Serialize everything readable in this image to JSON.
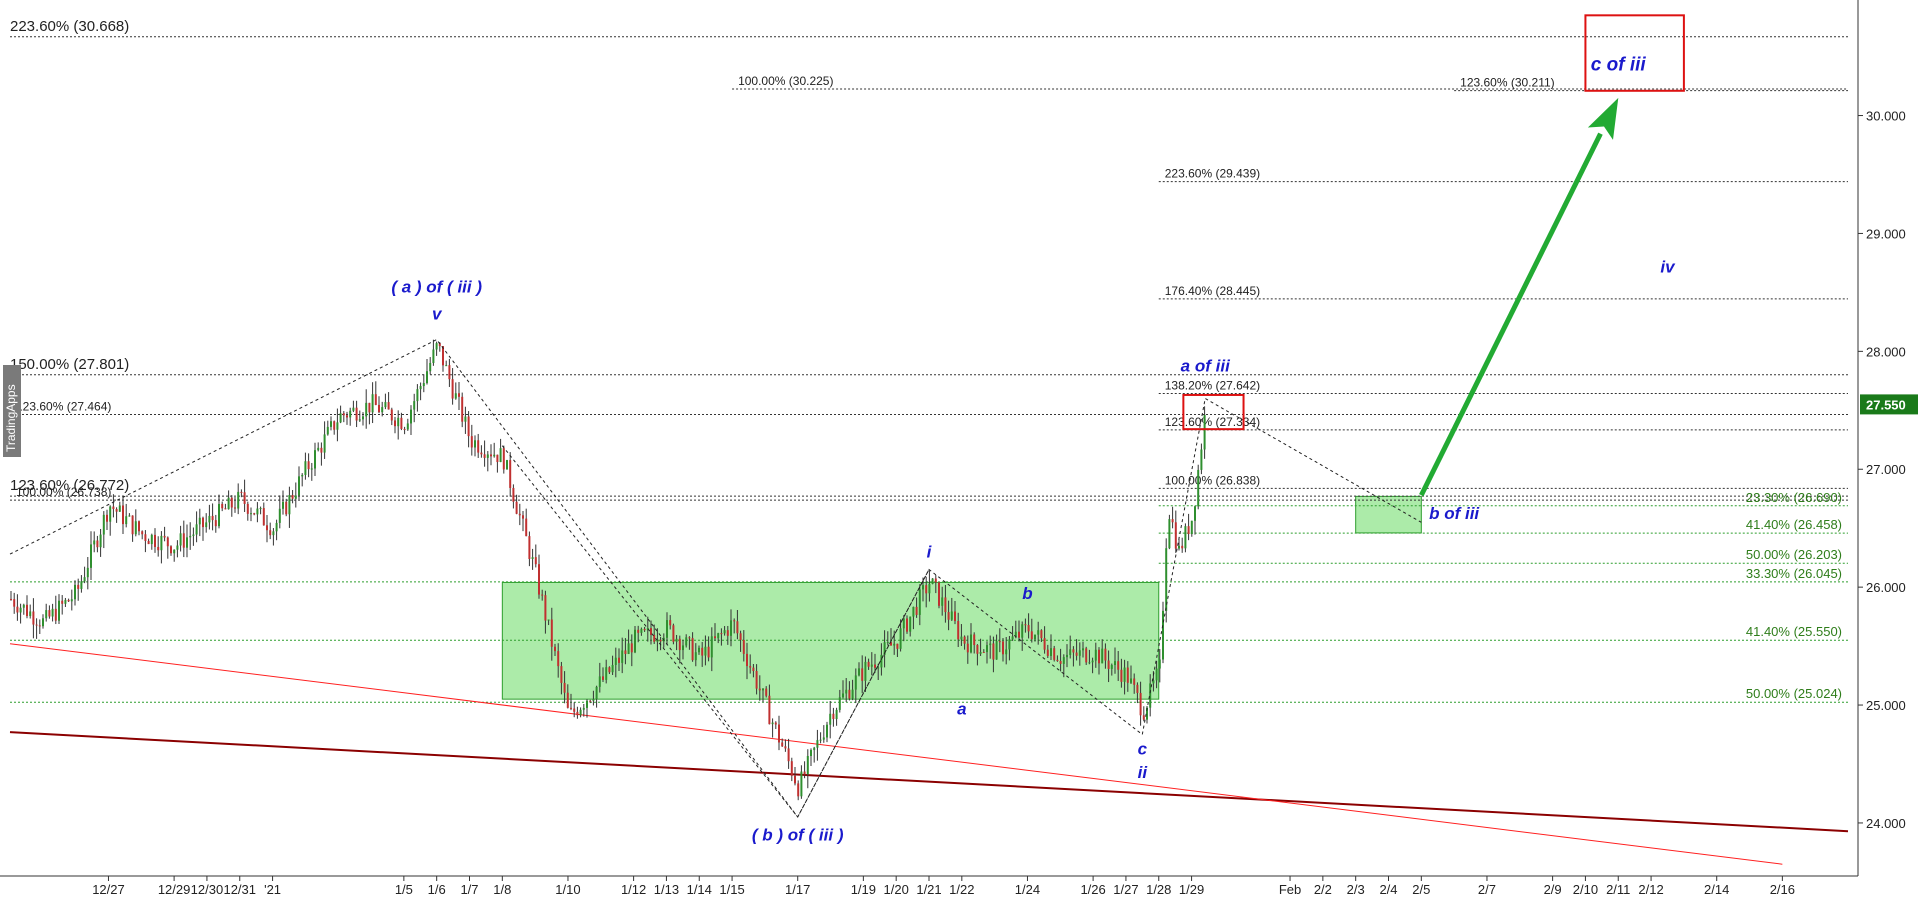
{
  "chart_data": {
    "type": "candlestick",
    "watermark": "TradingApps",
    "y_axis": {
      "range": [
        23.55,
        30.98
      ],
      "ticks": [
        24.0,
        25.0,
        26.0,
        27.0,
        28.0,
        29.0,
        30.0
      ],
      "tick_labels": [
        "24.000",
        "25.000",
        "26.000",
        "27.000",
        "28.000",
        "29.000",
        "30.000"
      ]
    },
    "x_axis": {
      "start": "2020-12-24",
      "end": "2021-02-18",
      "ticks": [
        {
          "date": "2020-12-27",
          "label": "12/27"
        },
        {
          "date": "2020-12-29",
          "label": "12/29"
        },
        {
          "date": "2020-12-30",
          "label": "12/30"
        },
        {
          "date": "2020-12-31",
          "label": "12/31"
        },
        {
          "date": "2021-01-01",
          "label": "'21"
        },
        {
          "date": "2021-01-05",
          "label": "1/5"
        },
        {
          "date": "2021-01-06",
          "label": "1/6"
        },
        {
          "date": "2021-01-07",
          "label": "1/7"
        },
        {
          "date": "2021-01-08",
          "label": "1/8"
        },
        {
          "date": "2021-01-10",
          "label": "1/10"
        },
        {
          "date": "2021-01-12",
          "label": "1/12"
        },
        {
          "date": "2021-01-13",
          "label": "1/13"
        },
        {
          "date": "2021-01-14",
          "label": "1/14"
        },
        {
          "date": "2021-01-15",
          "label": "1/15"
        },
        {
          "date": "2021-01-17",
          "label": "1/17"
        },
        {
          "date": "2021-01-19",
          "label": "1/19"
        },
        {
          "date": "2021-01-20",
          "label": "1/20"
        },
        {
          "date": "2021-01-21",
          "label": "1/21"
        },
        {
          "date": "2021-01-22",
          "label": "1/22"
        },
        {
          "date": "2021-01-24",
          "label": "1/24"
        },
        {
          "date": "2021-01-26",
          "label": "1/26"
        },
        {
          "date": "2021-01-27",
          "label": "1/27"
        },
        {
          "date": "2021-01-28",
          "label": "1/28"
        },
        {
          "date": "2021-01-29",
          "label": "1/29"
        },
        {
          "date": "2021-02-01",
          "label": "Feb"
        },
        {
          "date": "2021-02-02",
          "label": "2/2"
        },
        {
          "date": "2021-02-03",
          "label": "2/3"
        },
        {
          "date": "2021-02-04",
          "label": "2/4"
        },
        {
          "date": "2021-02-05",
          "label": "2/5"
        },
        {
          "date": "2021-02-07",
          "label": "2/7"
        },
        {
          "date": "2021-02-09",
          "label": "2/9"
        },
        {
          "date": "2021-02-10",
          "label": "2/10"
        },
        {
          "date": "2021-02-11",
          "label": "2/11"
        },
        {
          "date": "2021-02-12",
          "label": "2/12"
        },
        {
          "date": "2021-02-14",
          "label": "2/14"
        },
        {
          "date": "2021-02-16",
          "label": "2/16"
        }
      ]
    },
    "last_price": {
      "value": 27.55,
      "label": "27.550",
      "color": "#1a7a1a"
    },
    "price_path": [
      {
        "date": "2020-12-24",
        "price": 25.9
      },
      {
        "date": "2020-12-25",
        "price": 25.7
      },
      {
        "date": "2020-12-26",
        "price": 25.95
      },
      {
        "date": "2020-12-27",
        "price": 26.7
      },
      {
        "date": "2020-12-28",
        "price": 26.45
      },
      {
        "date": "2020-12-29",
        "price": 26.35
      },
      {
        "date": "2020-12-30",
        "price": 26.55
      },
      {
        "date": "2020-12-31",
        "price": 26.75
      },
      {
        "date": "2021-01-01",
        "price": 26.5
      },
      {
        "date": "2021-01-02",
        "price": 27.0
      },
      {
        "date": "2021-01-03",
        "price": 27.45
      },
      {
        "date": "2021-01-04",
        "price": 27.55
      },
      {
        "date": "2021-01-05",
        "price": 27.4
      },
      {
        "date": "2021-01-06",
        "price": 28.05
      },
      {
        "date": "2021-01-07",
        "price": 27.25
      },
      {
        "date": "2021-01-08",
        "price": 27.1
      },
      {
        "date": "2021-01-09",
        "price": 26.1
      },
      {
        "date": "2021-01-10",
        "price": 24.9
      },
      {
        "date": "2021-01-11",
        "price": 25.2
      },
      {
        "date": "2021-01-12",
        "price": 25.55
      },
      {
        "date": "2021-01-13",
        "price": 25.65
      },
      {
        "date": "2021-01-14",
        "price": 25.4
      },
      {
        "date": "2021-01-15",
        "price": 25.7
      },
      {
        "date": "2021-01-16",
        "price": 25.0
      },
      {
        "date": "2021-01-17",
        "price": 24.3
      },
      {
        "date": "2021-01-18",
        "price": 24.95
      },
      {
        "date": "2021-01-19",
        "price": 25.3
      },
      {
        "date": "2021-01-20",
        "price": 25.55
      },
      {
        "date": "2021-01-21",
        "price": 26.05
      },
      {
        "date": "2021-01-22",
        "price": 25.55
      },
      {
        "date": "2021-01-23",
        "price": 25.45
      },
      {
        "date": "2021-01-24",
        "price": 25.65
      },
      {
        "date": "2021-01-25",
        "price": 25.4
      },
      {
        "date": "2021-01-26",
        "price": 25.45
      },
      {
        "date": "2021-01-27",
        "price": 25.25
      },
      {
        "date": "2021-01-27T12:00",
        "price": 24.95
      },
      {
        "date": "2021-01-28",
        "price": 25.3
      },
      {
        "date": "2021-01-28T06:00",
        "price": 26.7
      },
      {
        "date": "2021-01-28T14:00",
        "price": 26.3
      },
      {
        "date": "2021-01-29",
        "price": 26.6
      },
      {
        "date": "2021-01-29T10:00",
        "price": 27.55
      }
    ],
    "fib_levels": [
      {
        "label": "223.60% (30.668)",
        "value": 30.668,
        "start": "2020-12-24",
        "end": "2021-02-18",
        "style": "big"
      },
      {
        "label": "100.00% (30.225)",
        "value": 30.225,
        "start": "2021-01-15",
        "end": "2021-02-18",
        "style": "small"
      },
      {
        "label": "123.60% (30.211)",
        "value": 30.211,
        "start": "2021-02-06",
        "end": "2021-02-18",
        "style": "small"
      },
      {
        "label": "223.60% (29.439)",
        "value": 29.439,
        "start": "2021-01-28",
        "end": "2021-02-18",
        "style": "small"
      },
      {
        "label": "176.40% (28.445)",
        "value": 28.445,
        "start": "2021-01-28",
        "end": "2021-02-18",
        "style": "small"
      },
      {
        "label": "150.00% (27.801)",
        "value": 27.801,
        "start": "2020-12-24",
        "end": "2021-02-18",
        "style": "big"
      },
      {
        "label": "138.20% (27.642)",
        "value": 27.642,
        "start": "2021-01-28",
        "end": "2021-02-18",
        "style": "small"
      },
      {
        "label": "123.60% (27.464)",
        "value": 27.464,
        "start": "2020-12-24",
        "end": "2021-02-18",
        "style": "small"
      },
      {
        "label": "123.60% (27.334)",
        "value": 27.334,
        "start": "2021-01-28",
        "end": "2021-02-18",
        "style": "small"
      },
      {
        "label": "100.00% (26.838)",
        "value": 26.838,
        "start": "2021-01-28",
        "end": "2021-02-18",
        "style": "small"
      },
      {
        "label": "123.60% (26.772)",
        "value": 26.772,
        "start": "2020-12-24",
        "end": "2021-02-18",
        "style": "big"
      },
      {
        "label": "100.00% (26.738)",
        "value": 26.738,
        "start": "2020-12-24",
        "end": "2021-02-18",
        "style": "small"
      },
      {
        "label": "23.30% (26.690)",
        "value": 26.69,
        "start": "2021-01-28",
        "end": "2021-02-18",
        "style": "green"
      },
      {
        "label": "41.40% (26.458)",
        "value": 26.458,
        "start": "2021-01-28",
        "end": "2021-02-18",
        "style": "green"
      },
      {
        "label": "50.00% (26.203)",
        "value": 26.203,
        "start": "2021-01-28",
        "end": "2021-02-18",
        "style": "green"
      },
      {
        "label": "33.30% (26.045)",
        "value": 26.045,
        "start": "2020-12-24",
        "end": "2021-02-18",
        "style": "green"
      },
      {
        "label": "41.40% (25.550)",
        "value": 25.55,
        "start": "2020-12-24",
        "end": "2021-02-18",
        "style": "green"
      },
      {
        "label": "50.00% (25.024)",
        "value": 25.024,
        "start": "2020-12-24",
        "end": "2021-02-18",
        "style": "green"
      }
    ],
    "zones": [
      {
        "name": "consolidation-zone",
        "start": "2021-01-08",
        "end": "2021-01-28",
        "top": 26.04,
        "bottom": 25.05,
        "color": "#9ee89a"
      },
      {
        "name": "b-of-iii-zone",
        "start": "2021-02-03",
        "end": "2021-02-05",
        "top": 26.77,
        "bottom": 26.46,
        "color": "#9ee89a"
      }
    ],
    "target_boxes": [
      {
        "name": "c-of-iii-box",
        "label": "c of iii",
        "start": "2021-02-10",
        "end": "2021-02-13",
        "top": 30.85,
        "bottom": 30.21,
        "color": "#dd1111"
      },
      {
        "name": "a-of-iii-box",
        "start": "2021-01-28T18:00",
        "end": "2021-01-30T14:00",
        "top": 27.63,
        "bottom": 27.34,
        "color": "#dd1111"
      }
    ],
    "dashed_paths": [
      [
        {
          "date": "2020-12-24",
          "price": 26.28
        },
        {
          "date": "2021-01-06",
          "price": 28.1
        },
        {
          "date": "2021-01-17",
          "price": 24.05
        },
        {
          "date": "2021-01-21",
          "price": 26.15
        },
        {
          "date": "2021-01-27T12:00",
          "price": 24.75
        },
        {
          "date": "2021-01-29T10:00",
          "price": 27.6
        },
        {
          "date": "2021-02-05",
          "price": 26.55
        }
      ],
      [
        {
          "date": "2021-01-08",
          "price": 27.2
        },
        {
          "date": "2021-01-17",
          "price": 24.05
        }
      ],
      [
        {
          "date": "2021-01-17",
          "price": 24.05
        },
        {
          "date": "2021-01-21",
          "price": 26.15
        }
      ]
    ],
    "trend_lines": [
      {
        "name": "dark-red-trendline",
        "from": {
          "date": "2020-12-24",
          "price": 24.77
        },
        "to": {
          "date": "2021-02-18",
          "price": 23.93
        },
        "color": "#8b0000",
        "width": 2
      },
      {
        "name": "red-trendline",
        "from": {
          "date": "2020-12-24",
          "price": 25.52
        },
        "to": {
          "date": "2021-02-16",
          "price": 23.65
        },
        "color": "#ff2020",
        "width": 1
      }
    ],
    "projection_arrow": {
      "from": {
        "date": "2021-02-05",
        "price": 26.78
      },
      "to": {
        "date": "2021-02-11",
        "price": 30.15
      },
      "color": "#22aa33"
    },
    "wave_labels": [
      {
        "text": "( a ) of ( iii )",
        "date": "2021-01-06",
        "price": 28.5,
        "size": 17
      },
      {
        "text": "v",
        "date": "2021-01-06",
        "price": 28.27,
        "size": 17
      },
      {
        "text": "( b ) of ( iii )",
        "date": "2021-01-17",
        "price": 23.85,
        "size": 17
      },
      {
        "text": "i",
        "date": "2021-01-21",
        "price": 26.25,
        "size": 17
      },
      {
        "text": "a",
        "date": "2021-01-22",
        "price": 24.92,
        "size": 17
      },
      {
        "text": "b",
        "date": "2021-01-24",
        "price": 25.9,
        "size": 17
      },
      {
        "text": "c",
        "date": "2021-01-27T12:00",
        "price": 24.58,
        "size": 17
      },
      {
        "text": "ii",
        "date": "2021-01-27T12:00",
        "price": 24.38,
        "size": 17
      },
      {
        "text": "a of iii",
        "date": "2021-01-29T10:00",
        "price": 27.83,
        "size": 17
      },
      {
        "text": "b of iii",
        "date": "2021-02-06",
        "price": 26.58,
        "size": 17
      },
      {
        "text": "iv",
        "date": "2021-02-12T12:00",
        "price": 28.67,
        "size": 17
      },
      {
        "text": "c of iii",
        "date": "2021-02-11",
        "price": 30.38,
        "size": 19
      }
    ]
  }
}
